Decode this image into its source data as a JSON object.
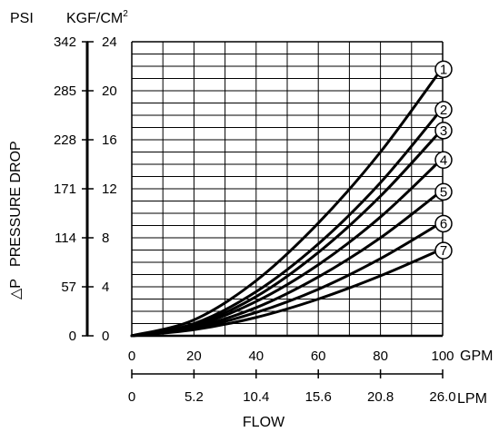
{
  "chart_data": {
    "type": "line",
    "left_axis_outer_label": "PSI",
    "left_axis_inner_label": "KGF/CM",
    "left_axis_inner_label_sup": "2",
    "ylabel": "△P   PRESSURE DROP",
    "psi_ticks": [
      "0",
      "57",
      "114",
      "171",
      "228",
      "285",
      "342"
    ],
    "kgf_ticks": [
      "0",
      "4",
      "8",
      "12",
      "16",
      "20",
      "24"
    ],
    "gpm_ticks": [
      "0",
      "20",
      "40",
      "60",
      "80",
      "100"
    ],
    "gpm_label": "GPM",
    "lpm_ticks": [
      "0",
      "5.2",
      "10.4",
      "15.6",
      "20.8",
      "26.0"
    ],
    "lpm_label": "LPM",
    "xlabel": "FLOW",
    "xlim": [
      0,
      100
    ],
    "ylim": [
      0,
      24
    ],
    "grid": true,
    "series": [
      {
        "name": "1",
        "x": [
          0,
          20,
          40,
          60,
          80,
          100
        ],
        "y": [
          0,
          1.3,
          4.5,
          9.2,
          15.0,
          21.9
        ]
      },
      {
        "name": "2",
        "x": [
          0,
          20,
          40,
          60,
          80,
          100
        ],
        "y": [
          0,
          1.0,
          3.6,
          7.5,
          12.5,
          18.6
        ]
      },
      {
        "name": "3",
        "x": [
          0,
          20,
          40,
          60,
          80,
          100
        ],
        "y": [
          0,
          0.9,
          3.2,
          6.8,
          11.4,
          16.9
        ]
      },
      {
        "name": "4",
        "x": [
          0,
          20,
          40,
          60,
          80,
          100
        ],
        "y": [
          0,
          0.8,
          2.8,
          5.8,
          9.7,
          14.5
        ]
      },
      {
        "name": "5",
        "x": [
          0,
          20,
          40,
          60,
          80,
          100
        ],
        "y": [
          0,
          0.7,
          2.3,
          4.8,
          8.0,
          11.9
        ]
      },
      {
        "name": "6",
        "x": [
          0,
          20,
          40,
          60,
          80,
          100
        ],
        "y": [
          0,
          0.6,
          1.9,
          3.8,
          6.3,
          9.3
        ]
      },
      {
        "name": "7",
        "x": [
          0,
          20,
          40,
          60,
          80,
          100
        ],
        "y": [
          0,
          0.5,
          1.5,
          3.0,
          4.9,
          7.1
        ]
      }
    ]
  }
}
